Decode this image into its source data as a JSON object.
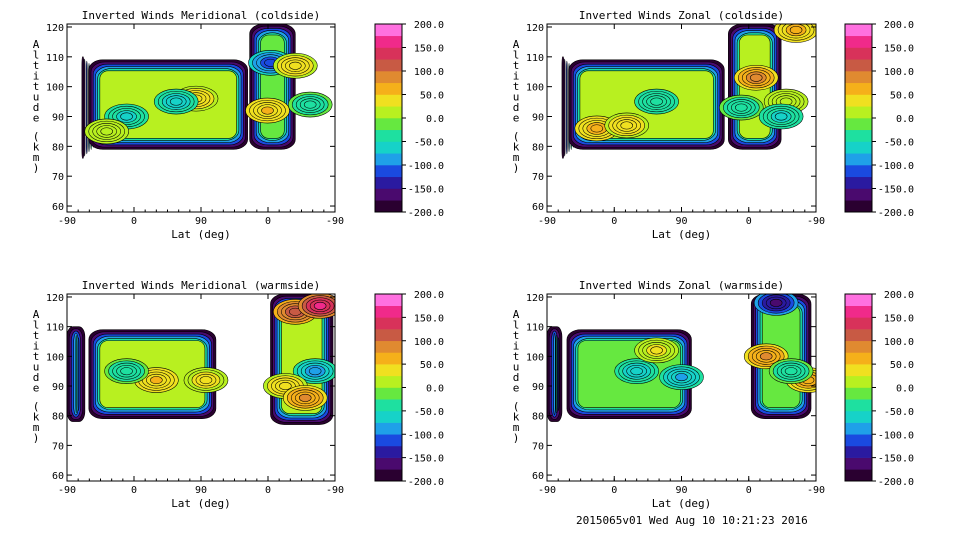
{
  "footer": "2015065v01 Wed Aug 10 10:21:23 2016",
  "colorbar": {
    "ticks": [
      "200.0",
      "150.0",
      "100.0",
      "50.0",
      "0.0",
      "-50.0",
      "-100.0",
      "-150.0",
      "-200.0"
    ],
    "range": [
      -200,
      200
    ],
    "colors": [
      "#2a0030",
      "#4a0a6e",
      "#2a1aa0",
      "#1a4ae0",
      "#1fa0e8",
      "#16d2c8",
      "#1ee0a0",
      "#66e840",
      "#b8f020",
      "#f0e020",
      "#f5b01a",
      "#e08a30",
      "#c85a44",
      "#d8325a",
      "#f02a8a",
      "#ff70e0"
    ]
  },
  "chart_data": [
    {
      "type": "heatmap",
      "title": "Inverted Winds Meridional (coldside)",
      "xlabel": "Lat (deg)",
      "ylabel": "Altitude (km)",
      "x_ticks": [
        "-90",
        "0",
        "90",
        "0",
        "-90"
      ],
      "y_ticks": [
        "60",
        "70",
        "80",
        "90",
        "100",
        "110",
        "120"
      ],
      "ylim": [
        58,
        121
      ],
      "blocks": [
        {
          "x": [
            -75,
            -73
          ],
          "y": [
            76,
            110
          ],
          "value": -190
        },
        {
          "x": [
            -68,
            92
          ],
          "y": [
            79,
            109
          ],
          "value": 10
        },
        {
          "x": [
            94,
            140
          ],
          "y": [
            79,
            121
          ],
          "value": -20
        }
      ],
      "features": [
        {
          "x": 40,
          "y": 96,
          "value": 40
        },
        {
          "x": 20,
          "y": 95,
          "value": -70
        },
        {
          "x": -30,
          "y": 90,
          "value": -60
        },
        {
          "x": -50,
          "y": 85,
          "value": 20
        },
        {
          "x": 115,
          "y": 108,
          "value": -120
        },
        {
          "x": 140,
          "y": 107,
          "value": 40
        },
        {
          "x": 112,
          "y": 92,
          "value": 50
        },
        {
          "x": 155,
          "y": 94,
          "value": -40
        }
      ]
    },
    {
      "type": "heatmap",
      "title": "Inverted Winds Zonal (coldside)",
      "xlabel": "Lat (deg)",
      "ylabel": "Altitude (km)",
      "x_ticks": [
        "-90",
        "0",
        "90",
        "0",
        "-90"
      ],
      "y_ticks": [
        "60",
        "70",
        "80",
        "90",
        "100",
        "110",
        "120"
      ],
      "ylim": [
        58,
        121
      ],
      "blocks": [
        {
          "x": [
            -75,
            -73
          ],
          "y": [
            76,
            110
          ],
          "value": -190
        },
        {
          "x": [
            -68,
            88
          ],
          "y": [
            79,
            109
          ],
          "value": 10
        },
        {
          "x": [
            92,
            145
          ],
          "y": [
            79,
            121
          ],
          "value": 20
        }
      ],
      "features": [
        {
          "x": -40,
          "y": 86,
          "value": 60
        },
        {
          "x": -10,
          "y": 87,
          "value": 40
        },
        {
          "x": 20,
          "y": 95,
          "value": -50
        },
        {
          "x": 120,
          "y": 103,
          "value": 90
        },
        {
          "x": 105,
          "y": 93,
          "value": -40
        },
        {
          "x": 150,
          "y": 95,
          "value": 20
        },
        {
          "x": 160,
          "y": 119,
          "value": 60
        },
        {
          "x": 145,
          "y": 90,
          "value": -60
        }
      ]
    },
    {
      "type": "heatmap",
      "title": "Inverted Winds Meridional (warmside)",
      "xlabel": "Lat (deg)",
      "ylabel": "Altitude (km)",
      "x_ticks": [
        "-90",
        "0",
        "90",
        "0",
        "-90"
      ],
      "y_ticks": [
        "60",
        "70",
        "80",
        "90",
        "100",
        "110",
        "120"
      ],
      "ylim": [
        58,
        121
      ],
      "blocks": [
        {
          "x": [
            -90,
            -72
          ],
          "y": [
            78,
            110
          ],
          "value": -120
        },
        {
          "x": [
            -68,
            60
          ],
          "y": [
            79,
            109
          ],
          "value": 0
        },
        {
          "x": [
            115,
            178
          ],
          "y": [
            77,
            121
          ],
          "value": 20
        }
      ],
      "features": [
        {
          "x": 0,
          "y": 92,
          "value": 55
        },
        {
          "x": 50,
          "y": 92,
          "value": 35
        },
        {
          "x": -30,
          "y": 95,
          "value": -40
        },
        {
          "x": 140,
          "y": 115,
          "value": 120
        },
        {
          "x": 165,
          "y": 117,
          "value": 170
        },
        {
          "x": 160,
          "y": 95,
          "value": -90
        },
        {
          "x": 130,
          "y": 90,
          "value": 40
        },
        {
          "x": 150,
          "y": 86,
          "value": 80
        }
      ]
    },
    {
      "type": "heatmap",
      "title": "Inverted Winds Zonal (warmside)",
      "xlabel": "Lat (deg)",
      "ylabel": "Altitude (km)",
      "x_ticks": [
        "-90",
        "0",
        "90",
        "0",
        "-90"
      ],
      "y_ticks": [
        "60",
        "70",
        "80",
        "90",
        "100",
        "110",
        "120"
      ],
      "ylim": [
        58,
        121
      ],
      "blocks": [
        {
          "x": [
            -90,
            -75
          ],
          "y": [
            78,
            110
          ],
          "value": -150
        },
        {
          "x": [
            -70,
            55
          ],
          "y": [
            79,
            109
          ],
          "value": -10
        },
        {
          "x": [
            115,
            175
          ],
          "y": [
            79,
            121
          ],
          "value": -20
        }
      ],
      "features": [
        {
          "x": 0,
          "y": 95,
          "value": -70
        },
        {
          "x": 20,
          "y": 102,
          "value": 30
        },
        {
          "x": 45,
          "y": 93,
          "value": -80
        },
        {
          "x": 140,
          "y": 118,
          "value": -170
        },
        {
          "x": 130,
          "y": 100,
          "value": 80
        },
        {
          "x": 172,
          "y": 92,
          "value": 70
        },
        {
          "x": 155,
          "y": 95,
          "value": -40
        }
      ]
    }
  ]
}
